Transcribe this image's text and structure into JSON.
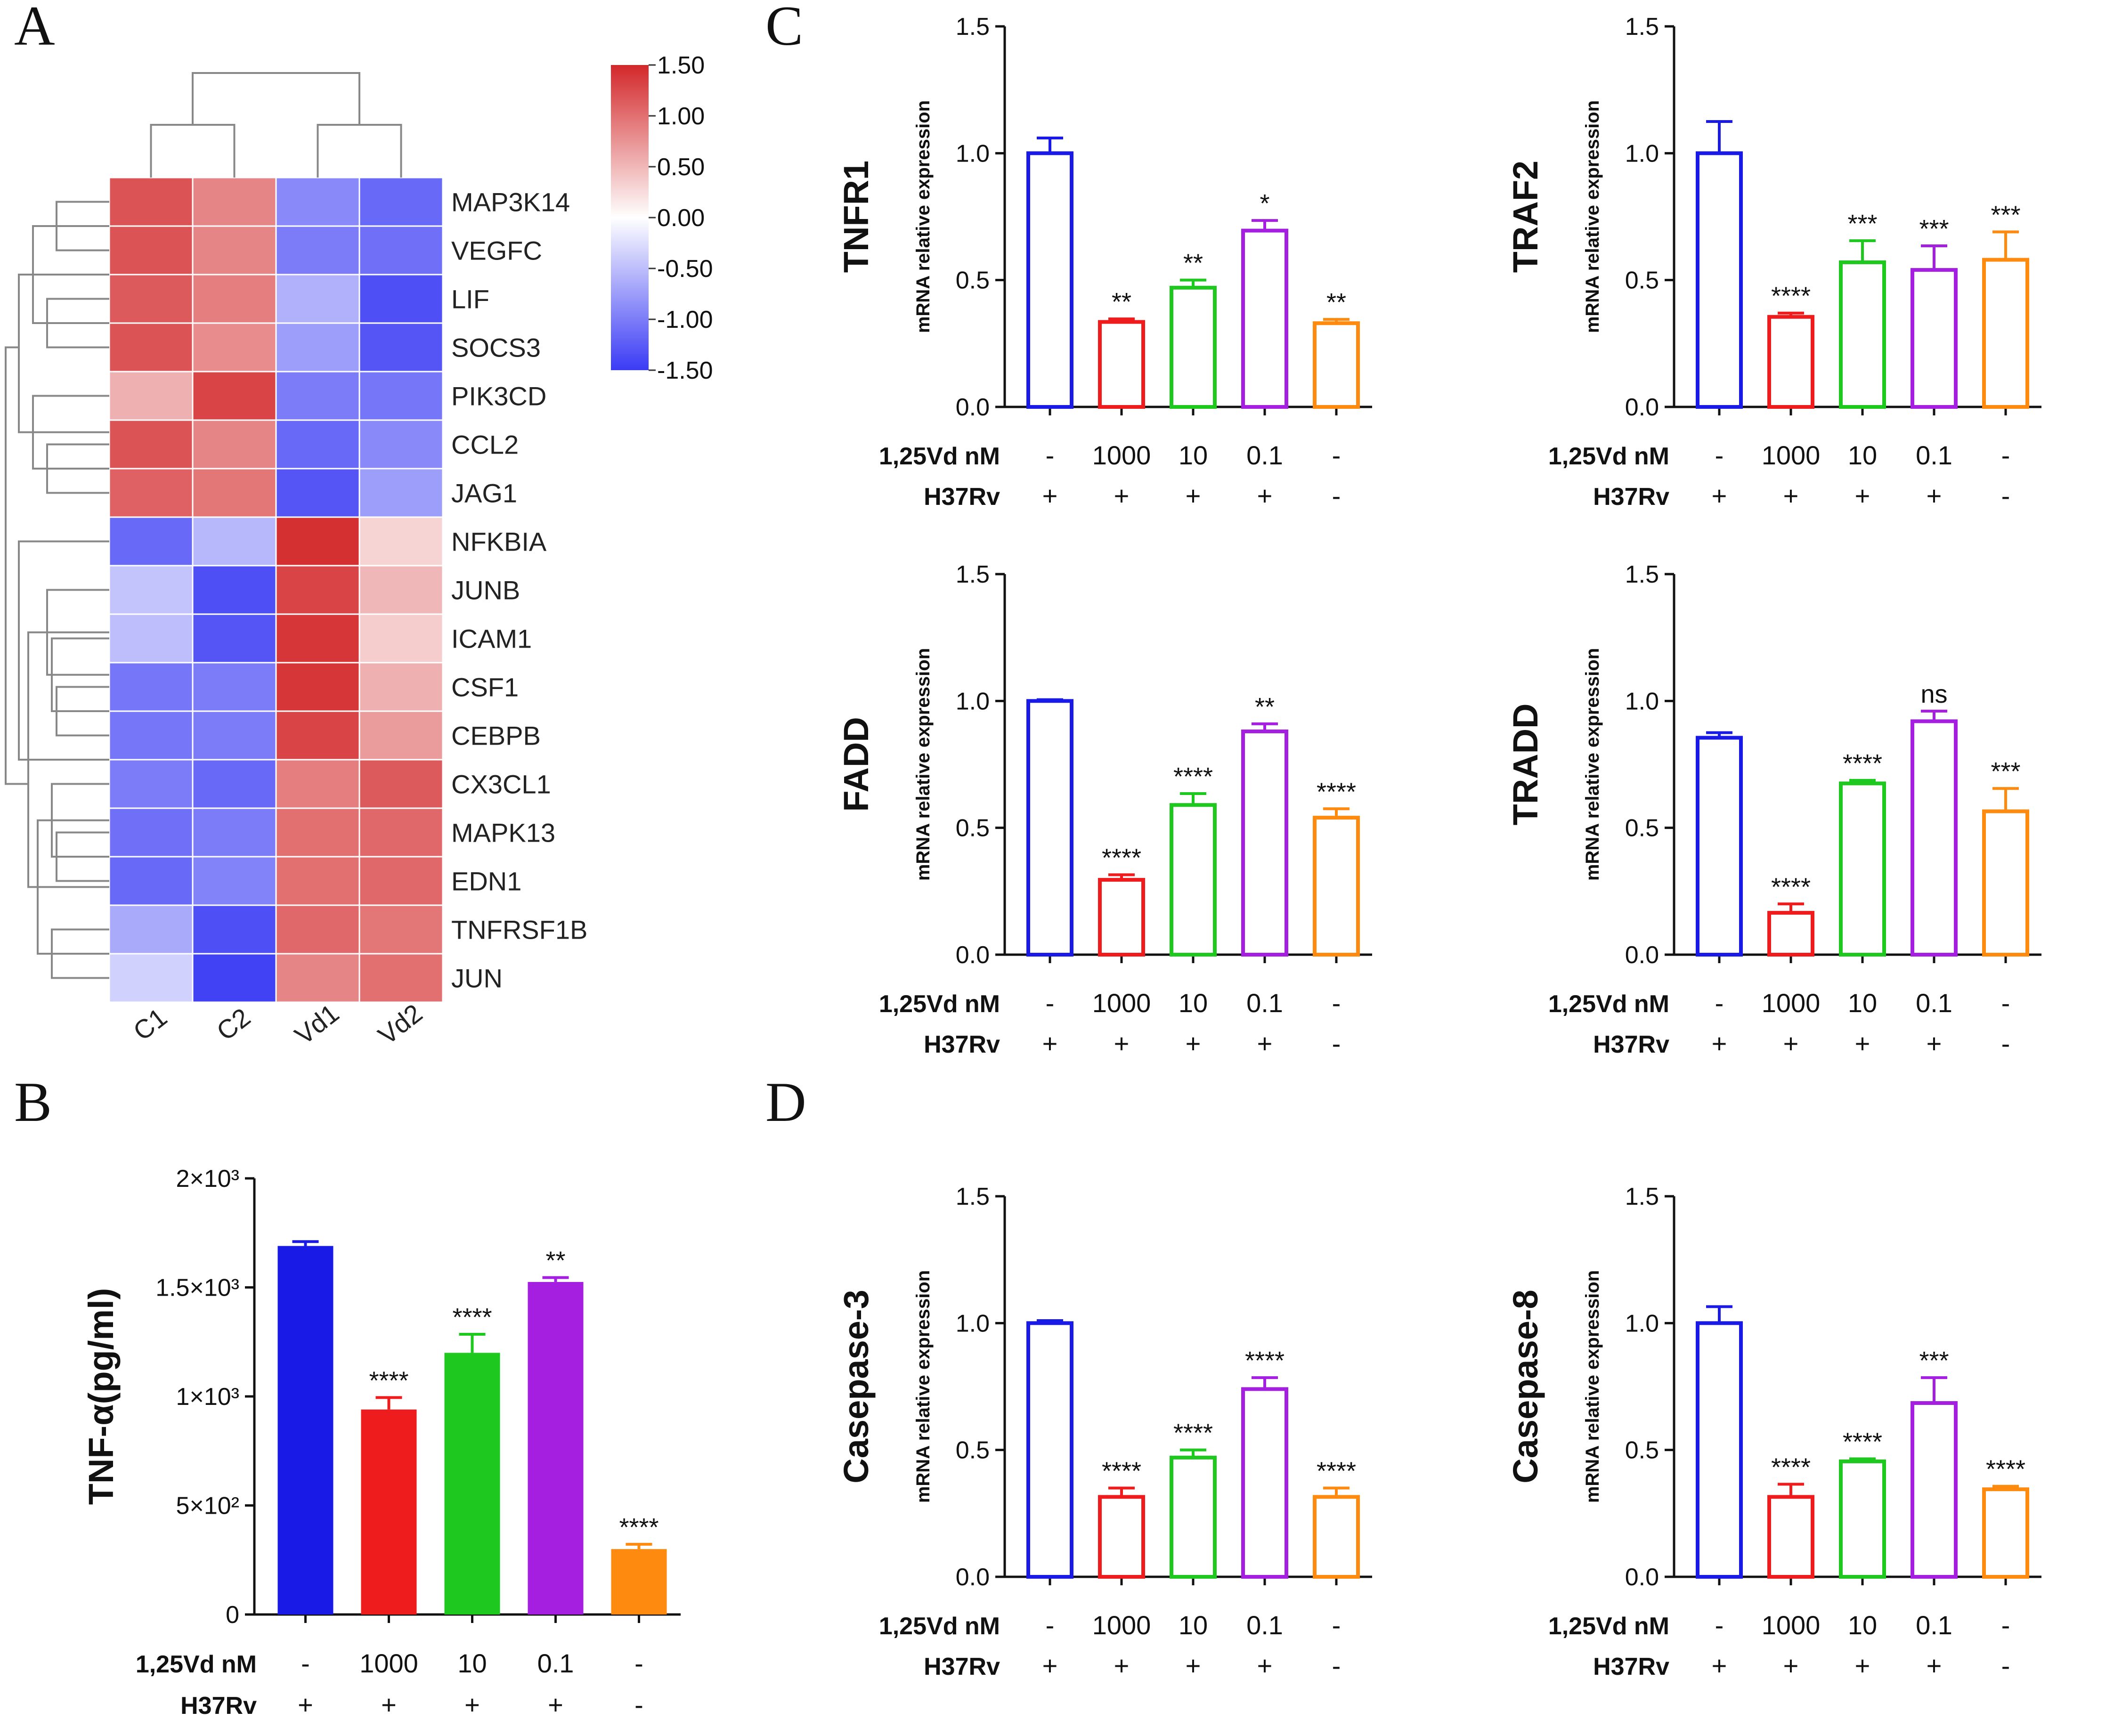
{
  "panels": {
    "A": "A",
    "B": "B",
    "C": "C",
    "D": "D"
  },
  "heatmap": {
    "columns": [
      "C1",
      "C2",
      "Vd1",
      "Vd2"
    ],
    "rows": [
      "MAP3K14",
      "VEGFC",
      "LIF",
      "SOCS3",
      "PIK3CD",
      "CCL2",
      "JAG1",
      "NFKBIA",
      "JUNB",
      "ICAM1",
      "CSF1",
      "CEBPB",
      "CX3CL1",
      "MAPK13",
      "EDN1",
      "TNFRSF1B",
      "JUN"
    ],
    "values": [
      [
        1.2,
        0.85,
        -0.9,
        -1.15
      ],
      [
        1.2,
        0.85,
        -1.0,
        -1.1
      ],
      [
        1.15,
        0.9,
        -0.6,
        -1.35
      ],
      [
        1.2,
        0.8,
        -0.75,
        -1.3
      ],
      [
        0.55,
        1.3,
        -1.0,
        -1.05
      ],
      [
        1.2,
        0.85,
        -1.15,
        -0.9
      ],
      [
        1.1,
        0.95,
        -1.3,
        -0.75
      ],
      [
        -1.15,
        -0.55,
        1.45,
        0.3
      ],
      [
        -0.45,
        -1.35,
        1.3,
        0.5
      ],
      [
        -0.5,
        -1.3,
        1.4,
        0.35
      ],
      [
        -1.05,
        -1.0,
        1.4,
        0.55
      ],
      [
        -1.05,
        -1.0,
        1.3,
        0.7
      ],
      [
        -1.0,
        -1.15,
        0.9,
        1.15
      ],
      [
        -1.1,
        -1.0,
        1.0,
        1.05
      ],
      [
        -1.15,
        -0.95,
        1.0,
        1.05
      ],
      [
        -0.65,
        -1.35,
        1.05,
        0.95
      ],
      [
        -0.35,
        -1.45,
        0.85,
        1.0
      ]
    ],
    "scale_ticks": [
      "1.50",
      "1.00",
      "0.50",
      "0.00",
      "-0.50",
      "-1.00",
      "-1.50"
    ],
    "colors": {
      "high": "#d3282a",
      "mid": "#ffffff",
      "low": "#3b3bf5"
    }
  },
  "conditions": {
    "dose_label": "1,25Vd nM",
    "dose_values": [
      "-",
      "1000",
      "10",
      "0.1",
      "-"
    ],
    "strain_label": "H37Rv",
    "strain_values": [
      "+",
      "+",
      "+",
      "+",
      "-"
    ]
  },
  "bar_colors": [
    "#1a1ae6",
    "#ee1c1c",
    "#1ec81e",
    "#a51fe0",
    "#ff8a10"
  ],
  "chart_data": [
    {
      "id": "B",
      "type": "bar",
      "filled": true,
      "title": "",
      "ylabel": "TNF-α(pg/ml)",
      "xlabel": "",
      "ylim": [
        0,
        2000
      ],
      "yticks": [
        0,
        500,
        1000,
        1500,
        2000
      ],
      "ytick_labels": [
        "0",
        "5×10²",
        "1×10³",
        "1.5×10³",
        "2×10³"
      ],
      "categories": [
        "-/+",
        "1000/+",
        "10/+",
        "0.1/+",
        "-/-"
      ],
      "values": [
        1690,
        940,
        1200,
        1525,
        300
      ],
      "errors": [
        20,
        55,
        85,
        20,
        22
      ],
      "sig": [
        "",
        "****",
        "****",
        "**",
        "****"
      ]
    },
    {
      "id": "TNFR1",
      "type": "bar",
      "filled": false,
      "title": "TNFR1",
      "ylabel": "mRNA relative expression",
      "xlabel": "",
      "ylim": [
        0,
        1.5
      ],
      "yticks": [
        0,
        0.5,
        1.0,
        1.5
      ],
      "ytick_labels": [
        "0.0",
        "0.5",
        "1.0",
        "1.5"
      ],
      "categories": [
        "-/+",
        "1000/+",
        "10/+",
        "0.1/+",
        "-/-"
      ],
      "values": [
        1.0,
        0.335,
        0.47,
        0.695,
        0.33
      ],
      "errors": [
        0.06,
        0.012,
        0.03,
        0.04,
        0.015
      ],
      "sig": [
        "",
        "**",
        "**",
        "*",
        "**"
      ]
    },
    {
      "id": "TRAF2",
      "type": "bar",
      "filled": false,
      "title": "TRAF2",
      "ylabel": "mRNA relative expression",
      "xlabel": "",
      "ylim": [
        0,
        1.5
      ],
      "yticks": [
        0,
        0.5,
        1.0,
        1.5
      ],
      "ytick_labels": [
        "0.0",
        "0.5",
        "1.0",
        "1.5"
      ],
      "categories": [
        "-/+",
        "1000/+",
        "10/+",
        "0.1/+",
        "-/-"
      ],
      "values": [
        1.0,
        0.355,
        0.57,
        0.54,
        0.58
      ],
      "errors": [
        0.125,
        0.015,
        0.085,
        0.095,
        0.11
      ],
      "sig": [
        "",
        "****",
        "***",
        "***",
        "***"
      ]
    },
    {
      "id": "FADD",
      "type": "bar",
      "filled": false,
      "title": "FADD",
      "ylabel": "mRNA relative expression",
      "xlabel": "",
      "ylim": [
        0,
        1.5
      ],
      "yticks": [
        0,
        0.5,
        1.0,
        1.5
      ],
      "ytick_labels": [
        "0.0",
        "0.5",
        "1.0",
        "1.5"
      ],
      "categories": [
        "-/+",
        "1000/+",
        "10/+",
        "0.1/+",
        "-/-"
      ],
      "values": [
        1.0,
        0.295,
        0.59,
        0.88,
        0.54
      ],
      "errors": [
        0.005,
        0.02,
        0.045,
        0.03,
        0.035
      ],
      "sig": [
        "",
        "****",
        "****",
        "**",
        "****"
      ]
    },
    {
      "id": "TRADD",
      "type": "bar",
      "filled": false,
      "title": "TRADD",
      "ylabel": "mRNA relative expression",
      "xlabel": "",
      "ylim": [
        0,
        1.5
      ],
      "yticks": [
        0,
        0.5,
        1.0,
        1.5
      ],
      "ytick_labels": [
        "0.0",
        "0.5",
        "1.0",
        "1.5"
      ],
      "categories": [
        "-/+",
        "1000/+",
        "10/+",
        "0.1/+",
        "-/-"
      ],
      "values": [
        0.855,
        0.165,
        0.675,
        0.92,
        0.565
      ],
      "errors": [
        0.02,
        0.035,
        0.012,
        0.04,
        0.09
      ],
      "sig": [
        "",
        "****",
        "****",
        "ns",
        "***"
      ]
    },
    {
      "id": "Casepase-3",
      "type": "bar",
      "filled": false,
      "title": "Casepase-3",
      "ylabel": "mRNA relative expression",
      "xlabel": "",
      "ylim": [
        0,
        1.5
      ],
      "yticks": [
        0,
        0.5,
        1.0,
        1.5
      ],
      "ytick_labels": [
        "0.0",
        "0.5",
        "1.0",
        "1.5"
      ],
      "categories": [
        "-/+",
        "1000/+",
        "10/+",
        "0.1/+",
        "-/-"
      ],
      "values": [
        1.0,
        0.315,
        0.47,
        0.74,
        0.315
      ],
      "errors": [
        0.01,
        0.035,
        0.03,
        0.045,
        0.035
      ],
      "sig": [
        "",
        "****",
        "****",
        "****",
        "****"
      ]
    },
    {
      "id": "Casepase-8",
      "type": "bar",
      "filled": false,
      "title": "Casepase-8",
      "ylabel": "mRNA relative expression",
      "xlabel": "",
      "ylim": [
        0,
        1.5
      ],
      "yticks": [
        0,
        0.5,
        1.0,
        1.5
      ],
      "ytick_labels": [
        "0.0",
        "0.5",
        "1.0",
        "1.5"
      ],
      "categories": [
        "-/+",
        "1000/+",
        "10/+",
        "0.1/+",
        "-/-"
      ],
      "values": [
        1.0,
        0.315,
        0.455,
        0.685,
        0.345
      ],
      "errors": [
        0.065,
        0.05,
        0.01,
        0.1,
        0.012
      ],
      "sig": [
        "",
        "****",
        "****",
        "***",
        "****"
      ]
    }
  ]
}
